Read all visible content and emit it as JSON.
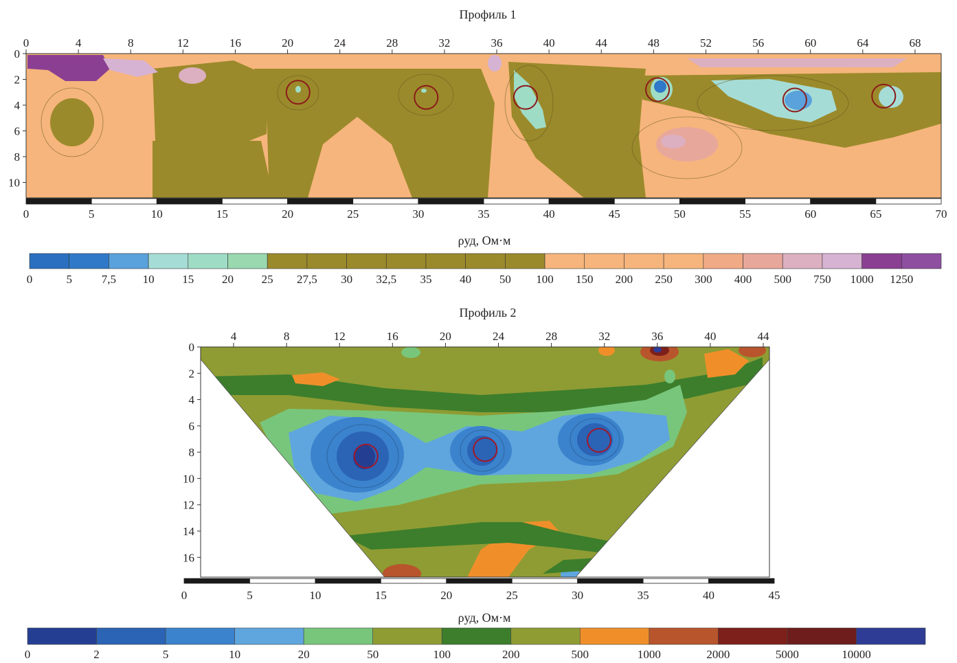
{
  "chart_data": [
    {
      "type": "heatmap",
      "title": "Профиль 1",
      "x_top_ticks": [
        "0",
        "4",
        "8",
        "12",
        "16",
        "20",
        "24",
        "28",
        "32",
        "36",
        "40",
        "44",
        "48",
        "52",
        "56",
        "60",
        "64",
        "68"
      ],
      "y_ticks": [
        "0",
        "2",
        "4",
        "6",
        "8",
        "10"
      ],
      "scale_ticks": [
        "0",
        "5",
        "10",
        "15",
        "20",
        "25",
        "30",
        "35",
        "40",
        "45",
        "50",
        "55",
        "60",
        "65",
        "70"
      ],
      "ylim": [
        0,
        11.2
      ],
      "x_top_range": [
        0,
        70
      ],
      "anomaly_markers": [
        {
          "x": 20.8,
          "depth": 3.0
        },
        {
          "x": 30.6,
          "depth": 3.4
        },
        {
          "x": 38.2,
          "depth": 3.4
        },
        {
          "x": 48.3,
          "depth": 2.8
        },
        {
          "x": 58.8,
          "depth": 3.6
        },
        {
          "x": 65.6,
          "depth": 3.3
        }
      ],
      "colorbar": {
        "label": "ρуд, Ом·м",
        "ticks": [
          "0",
          "5",
          "7,5",
          "10",
          "15",
          "20",
          "25",
          "27,5",
          "30",
          "32,5",
          "35",
          "40",
          "50",
          "100",
          "150",
          "200",
          "250",
          "300",
          "400",
          "500",
          "750",
          "1000",
          "1250"
        ],
        "colors": [
          "#2a6fc0",
          "#2f79c8",
          "#5aa2dc",
          "#a6dcd6",
          "#9fdcc6",
          "#9ad8b0",
          "#9b8a2b",
          "#9b8a2b",
          "#9b8a2b",
          "#9b8a2b",
          "#9b8a2b",
          "#9b8a2b",
          "#9b8a2b",
          "#f6b57c",
          "#f6b57c",
          "#f6b57c",
          "#f6b57c",
          "#f1aa86",
          "#e8a79b",
          "#dcb0c0",
          "#d7b3d3",
          "#8b3f92",
          "#8e4fa0"
        ]
      }
    },
    {
      "type": "heatmap",
      "title": "Профиль 2",
      "x_top_ticks": [
        "4",
        "8",
        "12",
        "16",
        "20",
        "24",
        "28",
        "32",
        "36",
        "40",
        "44"
      ],
      "y_ticks": [
        "0",
        "2",
        "4",
        "6",
        "8",
        "10",
        "12",
        "14",
        "16"
      ],
      "scale_ticks": [
        "0",
        "5",
        "10",
        "15",
        "20",
        "25",
        "30",
        "35",
        "40",
        "45"
      ],
      "ylim": [
        0,
        17.5
      ],
      "anomaly_markers": [
        {
          "x": 14.0,
          "depth": 8.3
        },
        {
          "x": 23.0,
          "depth": 7.8
        },
        {
          "x": 31.6,
          "depth": 7.1
        }
      ],
      "colorbar": {
        "label": "ρуд, Ом·м",
        "ticks": [
          "0",
          "2",
          "5",
          "10",
          "20",
          "50",
          "100",
          "200",
          "500",
          "1000",
          "2000",
          "5000",
          "10000"
        ],
        "colors": [
          "#243f92",
          "#2b63b5",
          "#3b83cc",
          "#5fa6de",
          "#78c67b",
          "#8f9c33",
          "#3c7e2c",
          "#8f9c33",
          "#f08f2a",
          "#b8552c",
          "#7d1f1a",
          "#6e1c1c",
          "#2e3c95"
        ]
      }
    }
  ]
}
